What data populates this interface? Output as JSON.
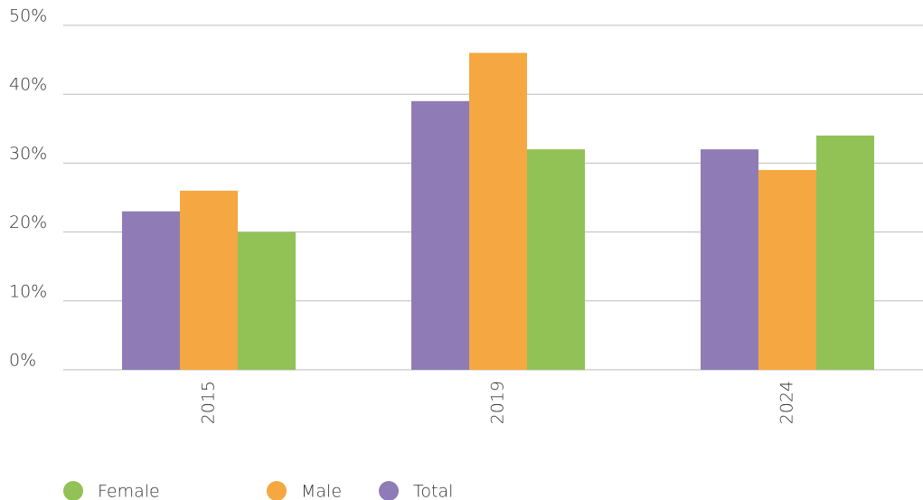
{
  "chart_data": {
    "type": "bar",
    "categories": [
      "2015",
      "2019",
      "2024"
    ],
    "series": [
      {
        "name": "Female",
        "color": "#92c156",
        "values": [
          20,
          32,
          34
        ]
      },
      {
        "name": "Male",
        "color": "#f5a742",
        "values": [
          26,
          46,
          29
        ]
      },
      {
        "name": "Total",
        "color": "#8f7cb6",
        "values": [
          23,
          39,
          32
        ]
      }
    ],
    "ylim": [
      0,
      50
    ],
    "yticks": [
      {
        "value": 0,
        "label": "0%"
      },
      {
        "value": 10,
        "label": "10%"
      },
      {
        "value": 20,
        "label": "20%"
      },
      {
        "value": 30,
        "label": "30%"
      },
      {
        "value": 40,
        "label": "40%"
      },
      {
        "value": 50,
        "label": "50%"
      }
    ],
    "grid": true,
    "legend": "bottom-left"
  }
}
